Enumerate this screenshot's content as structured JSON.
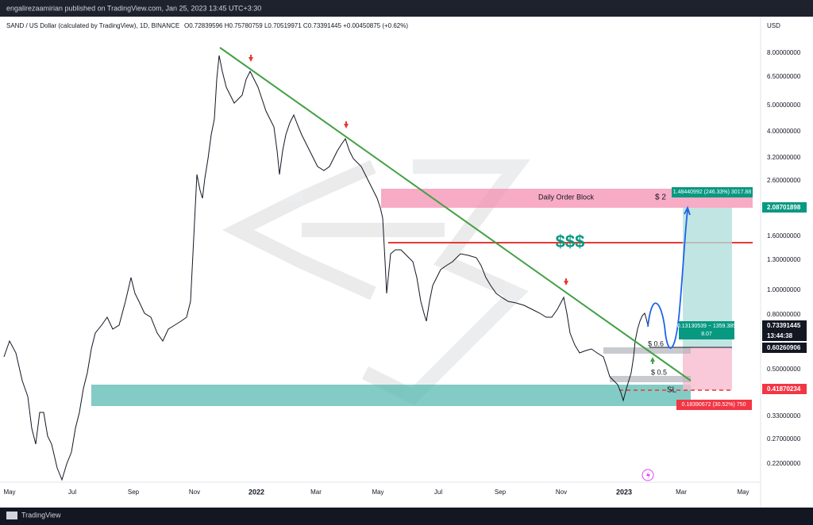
{
  "header": {
    "publisher": "engalirezaamirian published on TradingView.com, Jan 25, 2023 13:45 UTC+3:30"
  },
  "legend": {
    "symbol": "SAND / US Dollar (calculated by TradingView), 1D, BINANCE",
    "ohlc": "O0.72839596 H0.75780759 L0.70519971 C0.73391445 +0.00450875 (+0.62%)"
  },
  "price_axis": {
    "currency": "USD",
    "labels": [
      "8.00000000",
      "6.50000000",
      "5.00000000",
      "4.00000000",
      "3.20000000",
      "2.60000000",
      "1.60000000",
      "1.30000000",
      "1.00000000",
      "0.80000000",
      "0.50000000",
      "0.33000000",
      "0.27000000",
      "0.22000000"
    ],
    "tags": [
      {
        "text": "2.08701898",
        "color": "#089981"
      },
      {
        "text": "0.73391445",
        "color": "#131722"
      },
      {
        "text": "13:44:38",
        "color": "#131722"
      },
      {
        "text": "0.60260906",
        "color": "#131722"
      },
      {
        "text": "0.41870234",
        "color": "#f23645"
      }
    ]
  },
  "time_axis": {
    "labels": [
      "May",
      "Jul",
      "Sep",
      "Nov",
      "2022",
      "Mar",
      "May",
      "Jul",
      "Sep",
      "Nov",
      "2023",
      "Mar",
      "May"
    ]
  },
  "annotations": {
    "order_block": "Daily Order Block",
    "target_price": "$ 2",
    "target_box": "1.48440992 (246.33%) 3017.88",
    "liquidity": "$$$",
    "level_06": "$ 0.6",
    "level_05": "$ 0.5",
    "stop_loss": "SL",
    "ratio_line1": "0.13130539 − 1359.385",
    "ratio_line2": "8.07",
    "stop_box": "0.18390672 (30.52%) 750"
  },
  "footer": {
    "brand": "TradingView"
  }
}
